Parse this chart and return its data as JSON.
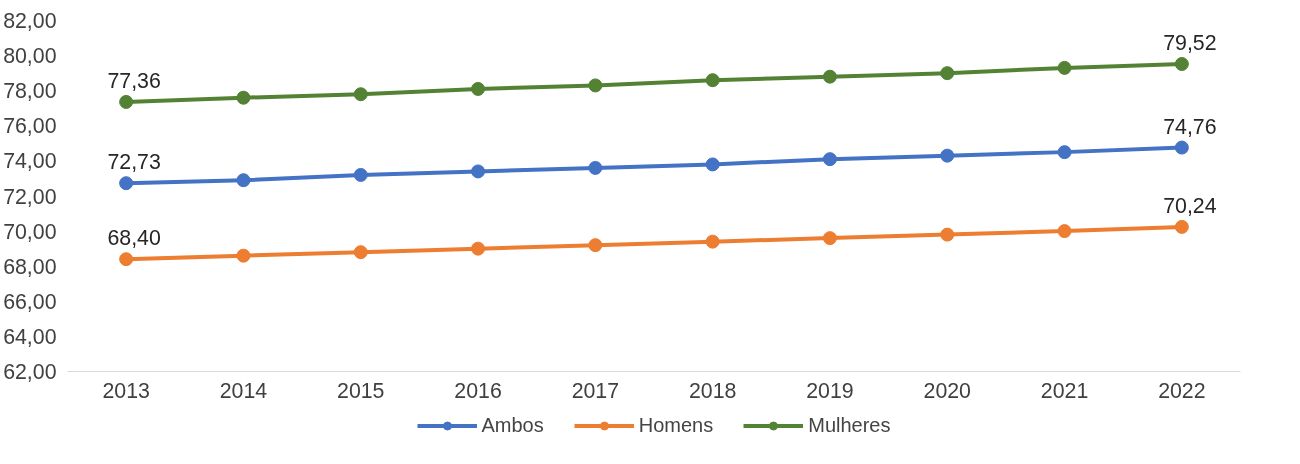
{
  "chart_data": {
    "type": "line",
    "categories": [
      "2013",
      "2014",
      "2015",
      "2016",
      "2017",
      "2018",
      "2019",
      "2020",
      "2021",
      "2022"
    ],
    "series": [
      {
        "name": "Ambos",
        "color": "#4472c4",
        "values": [
          72.73,
          72.9,
          73.2,
          73.4,
          73.6,
          73.8,
          74.1,
          74.3,
          74.5,
          74.76
        ],
        "value_labels": [
          "72,73",
          null,
          null,
          null,
          null,
          null,
          null,
          null,
          null,
          "74,76"
        ]
      },
      {
        "name": "Homens",
        "color": "#ed7d31",
        "values": [
          68.4,
          68.6,
          68.8,
          69.0,
          69.2,
          69.4,
          69.6,
          69.8,
          70.0,
          70.24
        ],
        "value_labels": [
          "68,40",
          null,
          null,
          null,
          null,
          null,
          null,
          null,
          null,
          "70,24"
        ]
      },
      {
        "name": "Mulheres",
        "color": "#548235",
        "values": [
          77.36,
          77.6,
          77.8,
          78.1,
          78.3,
          78.6,
          78.8,
          79.0,
          79.3,
          79.52
        ],
        "value_labels": [
          "77,36",
          null,
          null,
          null,
          null,
          null,
          null,
          null,
          null,
          "79,52"
        ]
      }
    ],
    "ylim": [
      62,
      82
    ],
    "yticks": [
      {
        "value": 62,
        "label": "62,00"
      },
      {
        "value": 64,
        "label": "64,00"
      },
      {
        "value": 66,
        "label": "66,00"
      },
      {
        "value": 68,
        "label": "68,00"
      },
      {
        "value": 70,
        "label": "70,00"
      },
      {
        "value": 72,
        "label": "72,00"
      },
      {
        "value": 74,
        "label": "74,00"
      },
      {
        "value": 76,
        "label": "76,00"
      },
      {
        "value": 78,
        "label": "78,00"
      },
      {
        "value": 80,
        "label": "80,00"
      },
      {
        "value": 82,
        "label": "82,00"
      }
    ],
    "grid": false,
    "legend": "bottom",
    "marker": "circle",
    "line_style": "solid"
  }
}
